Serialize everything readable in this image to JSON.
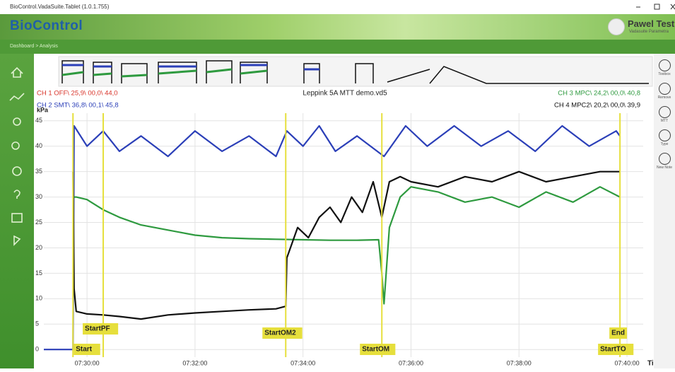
{
  "window": {
    "title": "BioControl.VadaSuite.Tablet (1.0.1.755)"
  },
  "header": {
    "brand": "BioControl",
    "user": "Pawel Test",
    "user_subtitle": "Vadasuite Parametra"
  },
  "breadcrumb": "Dashboard > Analysis",
  "tools": [
    "Toolbox",
    "Remove",
    "MTT",
    "Type",
    "New Note"
  ],
  "file_name": "Leppink 5A MTT demo.vd5",
  "channels": [
    {
      "text": "CH 1 OFF\\ 25,9\\ 00,0\\ 44,0",
      "color": "#d9352b"
    },
    {
      "text": "CH 2 SMT\\ 36,8\\ 00,1\\ 45,8",
      "color": "#2b3fb8"
    },
    {
      "text": "CH 3 MPC\\ 24,2\\ 00,0\\ 40,8",
      "color": "#2e9a3f"
    },
    {
      "text": "CH 4 MPC2\\ 20,2\\ 00,0\\ 39,9",
      "color": "#111111"
    }
  ],
  "chart_data": {
    "type": "line",
    "y_label": "kPa",
    "x_label": "Time",
    "xlim": [
      29.2,
      40.3
    ],
    "ylim": [
      -1.5,
      46.5
    ],
    "xticks": [
      {
        "value": 30,
        "label": "07:30:00"
      },
      {
        "value": 32,
        "label": "07:32:00"
      },
      {
        "value": 34,
        "label": "07:34:00"
      },
      {
        "value": 36,
        "label": "07:36:00"
      },
      {
        "value": 38,
        "label": "07:38:00"
      },
      {
        "value": 40,
        "label": "07:40:00"
      }
    ],
    "yticks": [
      0,
      5,
      10,
      15,
      20,
      25,
      30,
      35,
      40,
      45
    ],
    "grid": true,
    "series": [
      {
        "color": "#2b3fb8",
        "x": [
          29.2,
          29.7,
          29.74,
          29.76,
          30,
          30.3,
          30.6,
          31,
          31.5,
          32,
          32.5,
          33,
          33.5,
          33.7,
          34,
          34.3,
          34.6,
          35,
          35.5,
          35.9,
          36.3,
          36.8,
          37.3,
          37.8,
          38.3,
          38.8,
          39.3,
          39.8,
          39.87
        ],
        "values": [
          0,
          0,
          0,
          44,
          40,
          43,
          39,
          42,
          38,
          43,
          39,
          42,
          38,
          43,
          40,
          44,
          39,
          42,
          38,
          44,
          40,
          44,
          40,
          43,
          39,
          44,
          40,
          43,
          42
        ]
      },
      {
        "color": "#2e9a3f",
        "x": [
          29.74,
          29.8,
          30,
          30.3,
          30.6,
          31,
          31.5,
          32,
          32.5,
          33,
          33.5,
          34,
          34.5,
          35,
          35.4,
          35.46,
          35.5,
          35.6,
          35.8,
          36,
          36.5,
          37,
          37.5,
          38,
          38.5,
          39,
          39.5,
          39.87
        ],
        "values": [
          30,
          30,
          29.5,
          27.5,
          26,
          24.5,
          23.5,
          22.5,
          22,
          21.8,
          21.7,
          21.6,
          21.5,
          21.5,
          21.6,
          15,
          9,
          24,
          30,
          32,
          31,
          29,
          30,
          28,
          31,
          29,
          32,
          30
        ]
      },
      {
        "color": "#111111",
        "x": [
          29.74,
          29.76,
          29.8,
          30,
          30.3,
          30.6,
          31,
          31.5,
          32,
          32.5,
          33,
          33.5,
          33.68,
          33.7,
          33.9,
          34.1,
          34.3,
          34.5,
          34.7,
          34.9,
          35.1,
          35.3,
          35.46,
          35.6,
          35.8,
          36,
          36.5,
          37,
          37.5,
          38,
          38.5,
          39,
          39.5,
          39.87
        ],
        "values": [
          35,
          12,
          7.5,
          7,
          6.8,
          6.5,
          6,
          6.8,
          7.2,
          7.5,
          7.8,
          8,
          8.5,
          18,
          24,
          22,
          26,
          28,
          25,
          30,
          27,
          33,
          26,
          33,
          34,
          33,
          32,
          34,
          33,
          35,
          33,
          34,
          35,
          35
        ]
      }
    ],
    "events": [
      {
        "label": "Start",
        "x": 29.74
      },
      {
        "label": "StartPF",
        "x": 30.3
      },
      {
        "label": "StartOM2",
        "x": 33.68
      },
      {
        "label": "StartOM",
        "x": 35.46
      },
      {
        "label": "End",
        "x": 39.87
      },
      {
        "label": "StartTO",
        "x": 39.87
      }
    ],
    "event_color": "#e6df3c"
  }
}
